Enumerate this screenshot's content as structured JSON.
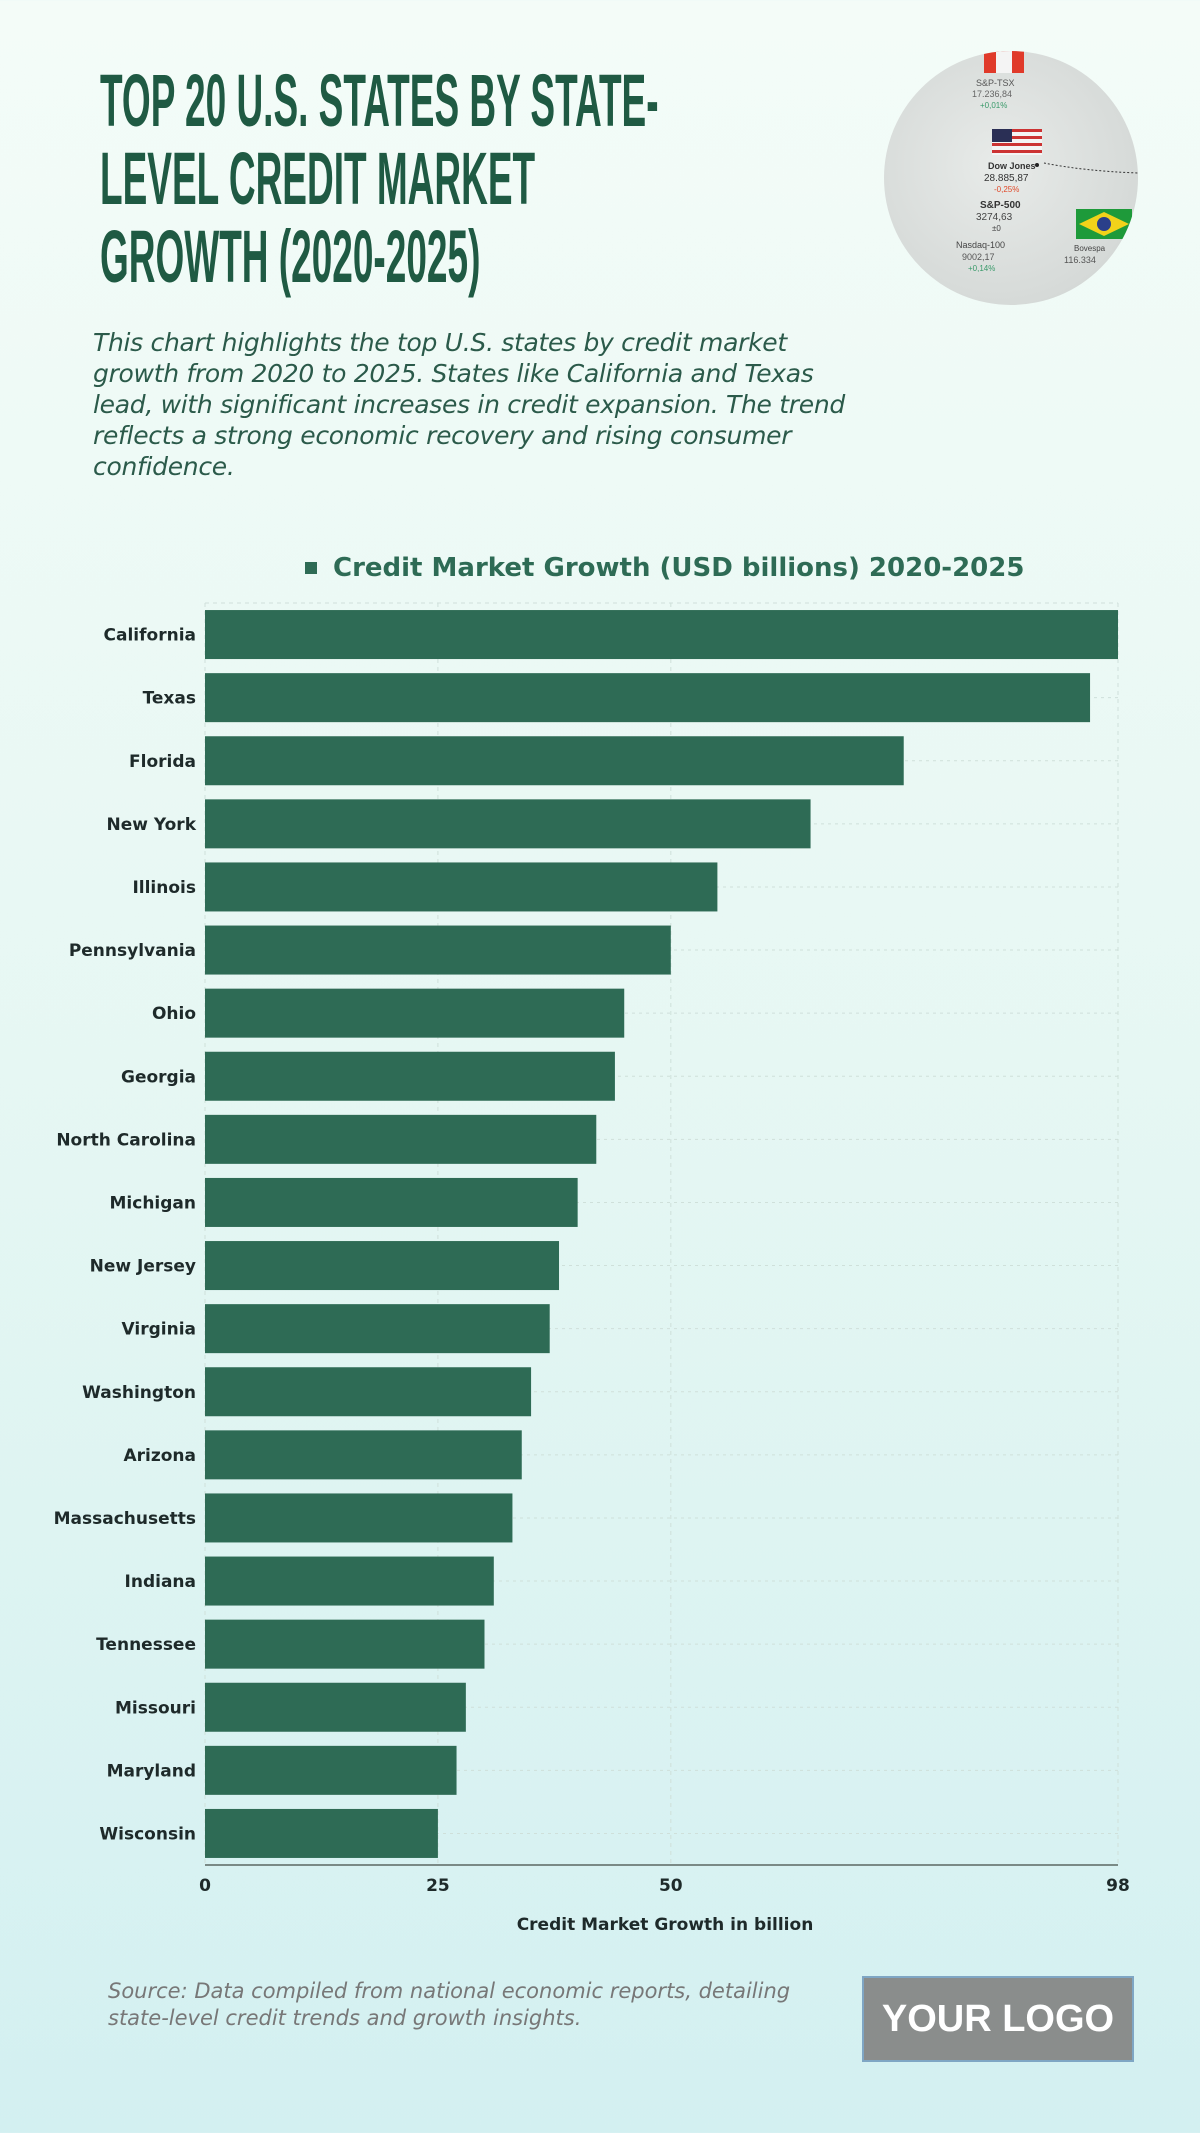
{
  "header": {
    "title_lines": [
      "TOP 20 U.S. STATES BY STATE-",
      "LEVEL CREDIT MARKET",
      "GROWTH (2020-2025)"
    ],
    "subtitle": "This chart highlights the top U.S. states by credit market growth from 2020 to 2025. States like California and Texas lead, with significant increases in credit expansion. The trend reflects a strong economic recovery and rising consumer confidence."
  },
  "photo": {
    "labels": [
      "S&P-TSX",
      "17.236,84",
      "+0,01%",
      "Dow Jones",
      "28.885,87",
      "-0,25%",
      "S&P-500",
      "3274,63",
      "±0",
      "Nasdaq-100",
      "9002,17",
      "+0,14%",
      "Bovespa",
      "116.334"
    ]
  },
  "chart_data": {
    "type": "bar",
    "orientation": "horizontal",
    "title": "",
    "legend": [
      "Credit Market Growth (USD billions) 2020-2025"
    ],
    "legend_placement": "top",
    "categories": [
      "California",
      "Texas",
      "Florida",
      "New York",
      "Illinois",
      "Pennsylvania",
      "Ohio",
      "Georgia",
      "North Carolina",
      "Michigan",
      "New Jersey",
      "Virginia",
      "Washington",
      "Arizona",
      "Massachusetts",
      "Indiana",
      "Tennessee",
      "Missouri",
      "Maryland",
      "Wisconsin"
    ],
    "values": [
      98,
      95,
      75,
      65,
      55,
      50,
      45,
      44,
      42,
      40,
      38,
      37,
      35,
      34,
      33,
      31,
      30,
      28,
      27,
      25
    ],
    "xlabel": "Credit Market Growth in billion",
    "ylabel": "",
    "xlim": [
      0,
      98
    ],
    "xticks": [
      "0",
      "25",
      "50",
      "98"
    ],
    "tick_values": [
      0,
      25,
      50,
      98
    ],
    "grid": true,
    "color": "#2e6b55"
  },
  "footer": {
    "source": "Source: Data compiled from national economic reports, detailing state-level credit trends and growth insights.",
    "logo": "YOUR LOGO"
  }
}
